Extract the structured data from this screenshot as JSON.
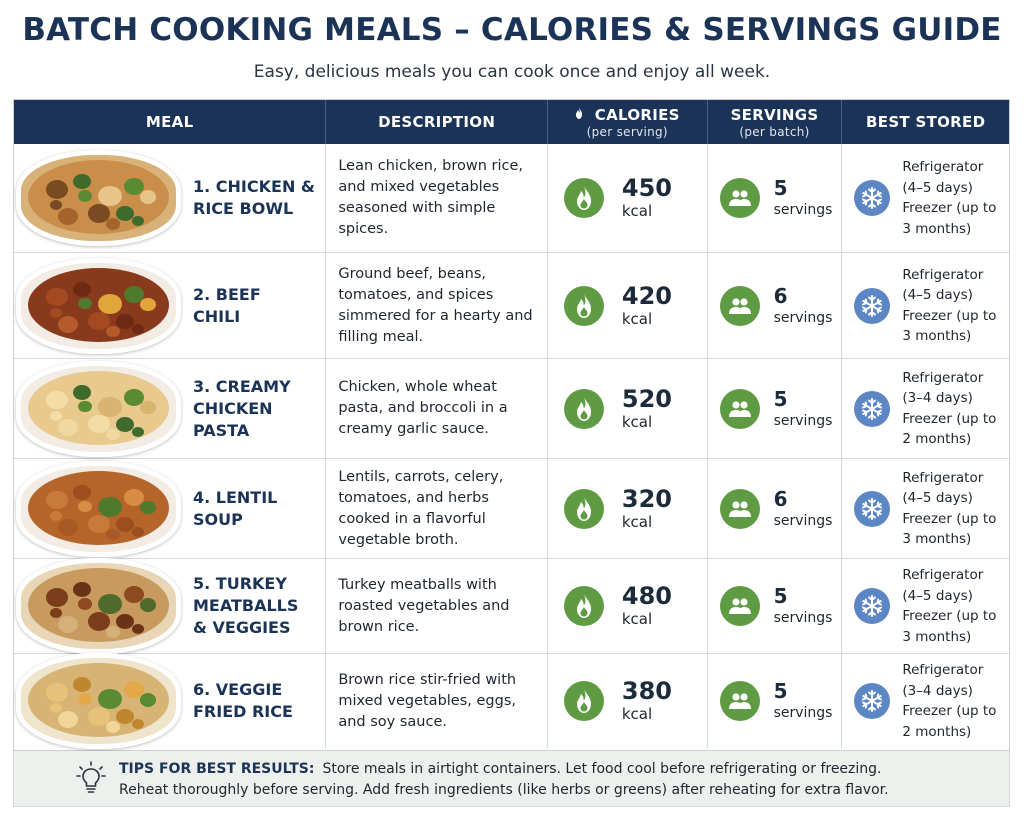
{
  "title": "BATCH COOKING MEALS – CALORIES & SERVINGS GUIDE",
  "subtitle": "Easy, delicious meals you can cook once and enjoy all week.",
  "headers": {
    "meal": "MEAL",
    "description": "DESCRIPTION",
    "calories": "CALORIES",
    "calories_sub": "(per serving)",
    "servings": "SERVINGS",
    "servings_sub": "(per batch)",
    "stored": "BEST STORED"
  },
  "colors": {
    "header_bg": "#1b3357",
    "calorie_icon": "#5e9b43",
    "servings_icon": "#5e9b43",
    "storage_icon": "#5d86c4",
    "tips_bg": "#edf0ec"
  },
  "icons": {
    "calories": "flame-icon",
    "servings": "people-icon",
    "storage": "snowflake-icon",
    "tips": "lightbulb-icon"
  },
  "meals": [
    {
      "name": "1. CHICKEN &\nRICE BOWL",
      "description": "Lean chicken, brown rice, and mixed vegetables seasoned with simple spices.",
      "calories": "450",
      "calories_unit": "kcal",
      "servings": "5",
      "servings_unit": "servings",
      "storage": "Refrigerator (4–5 days) Freezer (up to 3 months)",
      "image": "chicken-rice-bowl-photo"
    },
    {
      "name": "2. BEEF\n    CHILI",
      "description": "Ground beef, beans, tomatoes, and spices simmered for a hearty and filling meal.",
      "calories": "420",
      "calories_unit": "kcal",
      "servings": "6",
      "servings_unit": "servings",
      "storage": "Refrigerator (4–5 days) Freezer (up to 3 months)",
      "image": "beef-chili-photo"
    },
    {
      "name": "3. CREAMY\nCHICKEN PASTA",
      "description": "Chicken, whole wheat pasta, and broccoli in a creamy garlic sauce.",
      "calories": "520",
      "calories_unit": "kcal",
      "servings": "5",
      "servings_unit": "servings",
      "storage": "Refrigerator (3–4 days) Freezer (up to 2 months)",
      "image": "creamy-chicken-pasta-photo"
    },
    {
      "name": "4. LENTIL\n    SOUP",
      "description": "Lentils, carrots, celery, tomatoes, and herbs cooked in a flavorful vegetable broth.",
      "calories": "320",
      "calories_unit": "kcal",
      "servings": "6",
      "servings_unit": "servings",
      "storage": "Refrigerator (4–5 days) Freezer (up to 3 months)",
      "image": "lentil-soup-photo"
    },
    {
      "name": "5. TURKEY\n    MEATBALLS\n    & VEGGIES",
      "description": "Turkey meatballs with roasted vegetables and brown rice.",
      "calories": "480",
      "calories_unit": "kcal",
      "servings": "5",
      "servings_unit": "servings",
      "storage": "Refrigerator (4–5 days) Freezer (up to 3 months)",
      "image": "turkey-meatballs-photo"
    },
    {
      "name": "6. VEGGIE\n    FRIED RICE",
      "description": "Brown rice stir-fried with mixed vegetables, eggs, and soy sauce.",
      "calories": "380",
      "calories_unit": "kcal",
      "servings": "5",
      "servings_unit": "servings",
      "storage": "Refrigerator (3–4 days) Freezer (up to 2 months)",
      "image": "veggie-fried-rice-photo"
    }
  ],
  "tips": {
    "label": "TIPS FOR BEST RESULTS:",
    "line1": "Store meals in airtight containers. Let food cool before refrigerating or freezing.",
    "line2": "Reheat thoroughly before serving. Add fresh ingredients (like herbs or greens) after reheating for extra flavor."
  }
}
